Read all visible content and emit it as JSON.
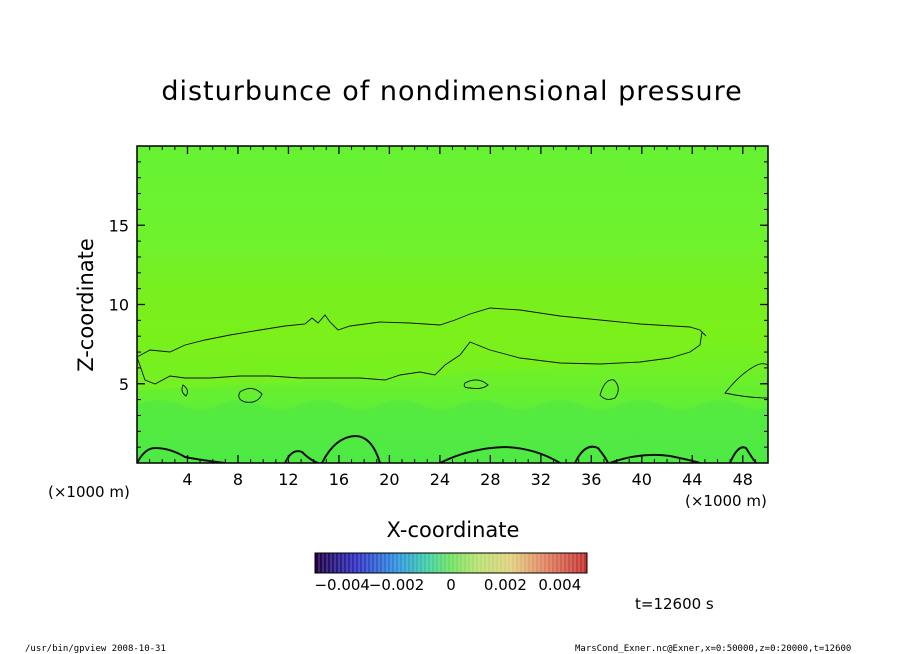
{
  "chart_data": {
    "type": "heatmap",
    "title": "disturbunce of nondimensional pressure",
    "xlabel": "X-coordinate",
    "ylabel": "Z-coordinate",
    "x_unit": "(×1000 m)",
    "y_unit": "(×1000 m)",
    "xlim": [
      0,
      50
    ],
    "ylim": [
      0,
      20
    ],
    "x_ticks": [
      4,
      8,
      12,
      16,
      20,
      24,
      28,
      32,
      36,
      40,
      44,
      48
    ],
    "y_ticks": [
      5,
      10,
      15
    ],
    "colorbar": {
      "range": [
        -0.005,
        0.005
      ],
      "tick_values": [
        -0.004,
        -0.002,
        0,
        0.002,
        0.004
      ],
      "tick_labels": [
        "−0.004",
        "−0.002",
        "0",
        "0.002",
        "0.004"
      ]
    },
    "time_label": "t=12600 s",
    "footer_left": "/usr/bin/gpview   2008-10-31",
    "footer_right": "MarsCond_Exner.nc@Exner,x=0:50000,z=0:20000,t=12600"
  }
}
